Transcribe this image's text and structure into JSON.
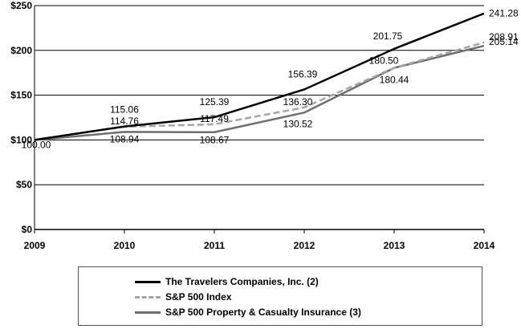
{
  "chart_data": {
    "type": "line",
    "title": "",
    "xlabel": "",
    "ylabel": "",
    "x": [
      "2009",
      "2010",
      "2011",
      "2012",
      "2013",
      "2014"
    ],
    "ylim": [
      0,
      250
    ],
    "yticks": [
      0,
      50,
      100,
      150,
      200,
      250
    ],
    "ytick_labels": [
      "$0",
      "$50",
      "$100",
      "$150",
      "$200",
      "$250"
    ],
    "grid": "horizontal",
    "legend_position": "bottom",
    "series": [
      {
        "name": "The Travelers Companies, Inc. (2)",
        "values": [
          100.0,
          115.06,
          125.39,
          156.39,
          201.75,
          241.28
        ],
        "labels": [
          "100.00",
          "115.06",
          "125.39",
          "156.39",
          "201.75",
          "241.28"
        ],
        "color": "#000000",
        "style": "solid"
      },
      {
        "name": "S&P 500 Index",
        "values": [
          100.0,
          114.76,
          117.49,
          136.3,
          180.5,
          208.91
        ],
        "labels": [
          "",
          "114.76",
          "117.49",
          "136.30",
          "180.50",
          "208.91"
        ],
        "color": "#a6a6a6",
        "style": "dashed"
      },
      {
        "name": "S&P 500 Property & Casualty Insurance (3)",
        "values": [
          100.0,
          108.94,
          108.67,
          130.52,
          180.44,
          205.14
        ],
        "labels": [
          "",
          "108.94",
          "108.67",
          "130.52",
          "180.44",
          "205.14"
        ],
        "color": "#6e6e6e",
        "style": "solid"
      }
    ]
  }
}
